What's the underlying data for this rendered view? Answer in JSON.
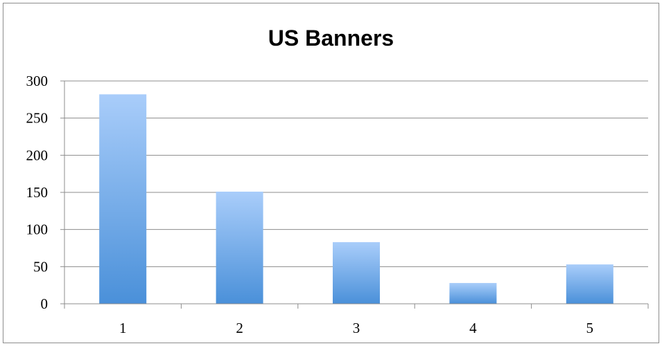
{
  "chart_data": {
    "type": "bar",
    "title": "US Banners",
    "xlabel": "",
    "ylabel": "",
    "categories": [
      "1",
      "2",
      "3",
      "4",
      "5"
    ],
    "values": [
      282,
      151,
      83,
      28,
      53
    ],
    "ylim": [
      0,
      300
    ],
    "yticks": [
      0,
      50,
      100,
      150,
      200,
      250,
      300
    ],
    "grid": true,
    "legend": "none",
    "colors": {
      "bar_top": "#a9cdfa",
      "bar_bottom": "#4a90d9",
      "gridline": "#8c8c8c",
      "axis": "#8c8c8c"
    }
  }
}
